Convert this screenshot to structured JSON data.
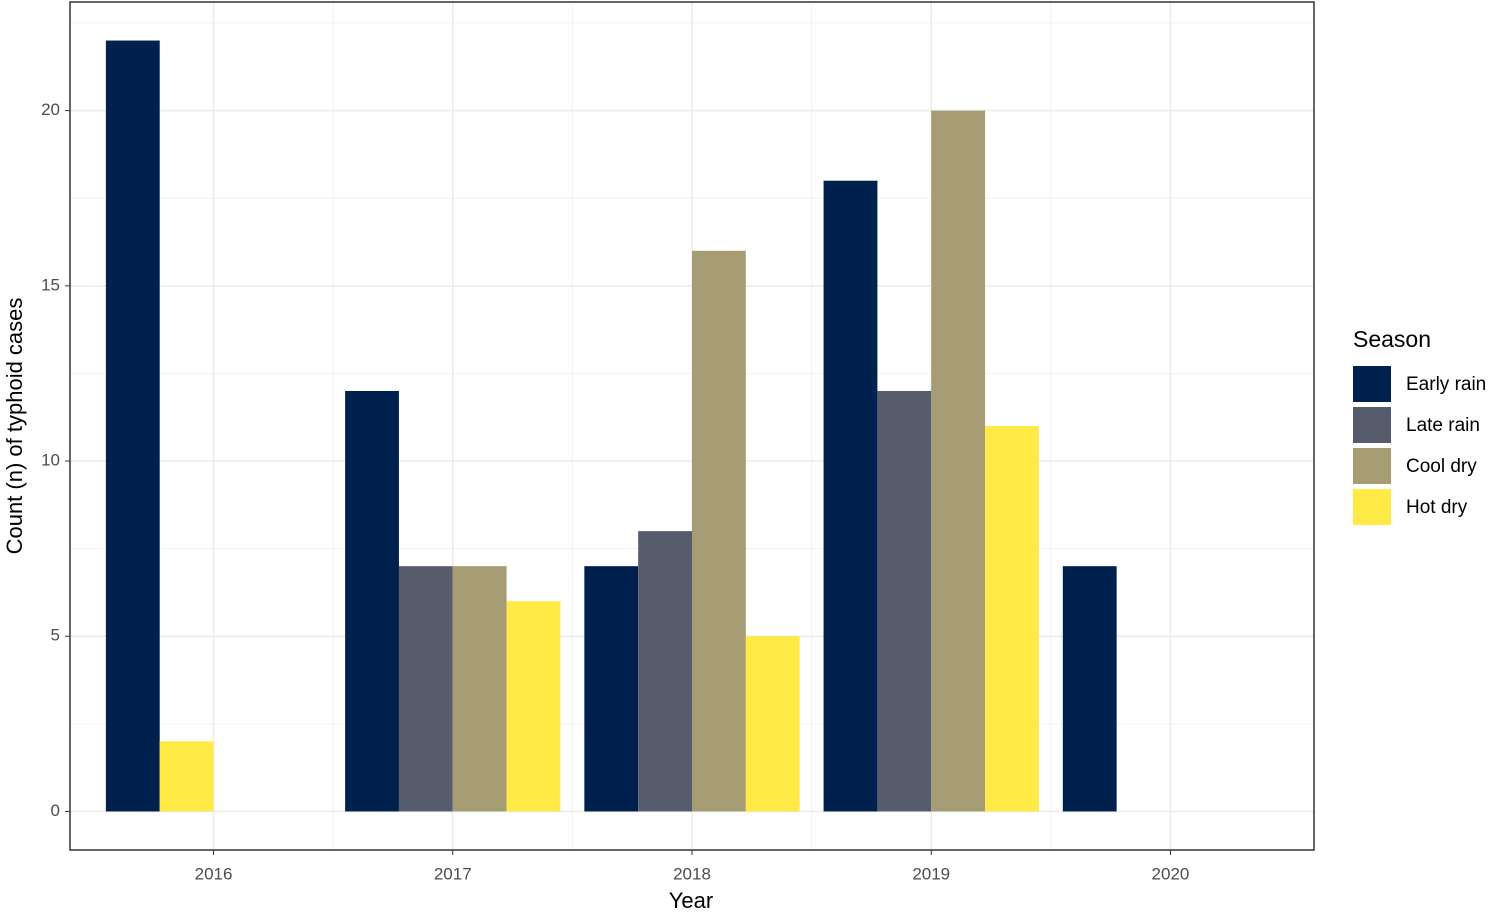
{
  "chart_data": {
    "type": "bar",
    "x_label": "Year",
    "y_label": "Count (n) of typhoid cases",
    "categories": [
      "2016",
      "2017",
      "2018",
      "2019",
      "2020"
    ],
    "series": [
      {
        "name": "Early rain",
        "color": "#00204D",
        "values": [
          22,
          12,
          7,
          18,
          7
        ]
      },
      {
        "name": "Late rain",
        "color": "#575C6D",
        "values": [
          null,
          7,
          8,
          12,
          null
        ]
      },
      {
        "name": "Cool dry",
        "color": "#A69D75",
        "values": [
          null,
          7,
          16,
          20,
          null
        ]
      },
      {
        "name": "Hot dry",
        "color": "#FFEA46",
        "values": [
          2,
          6,
          5,
          11,
          null
        ]
      }
    ],
    "legend_title": "Season",
    "ylim": [
      -1.1,
      23.1
    ],
    "yticks": [
      0,
      5,
      10,
      15,
      20
    ],
    "grid": true
  }
}
